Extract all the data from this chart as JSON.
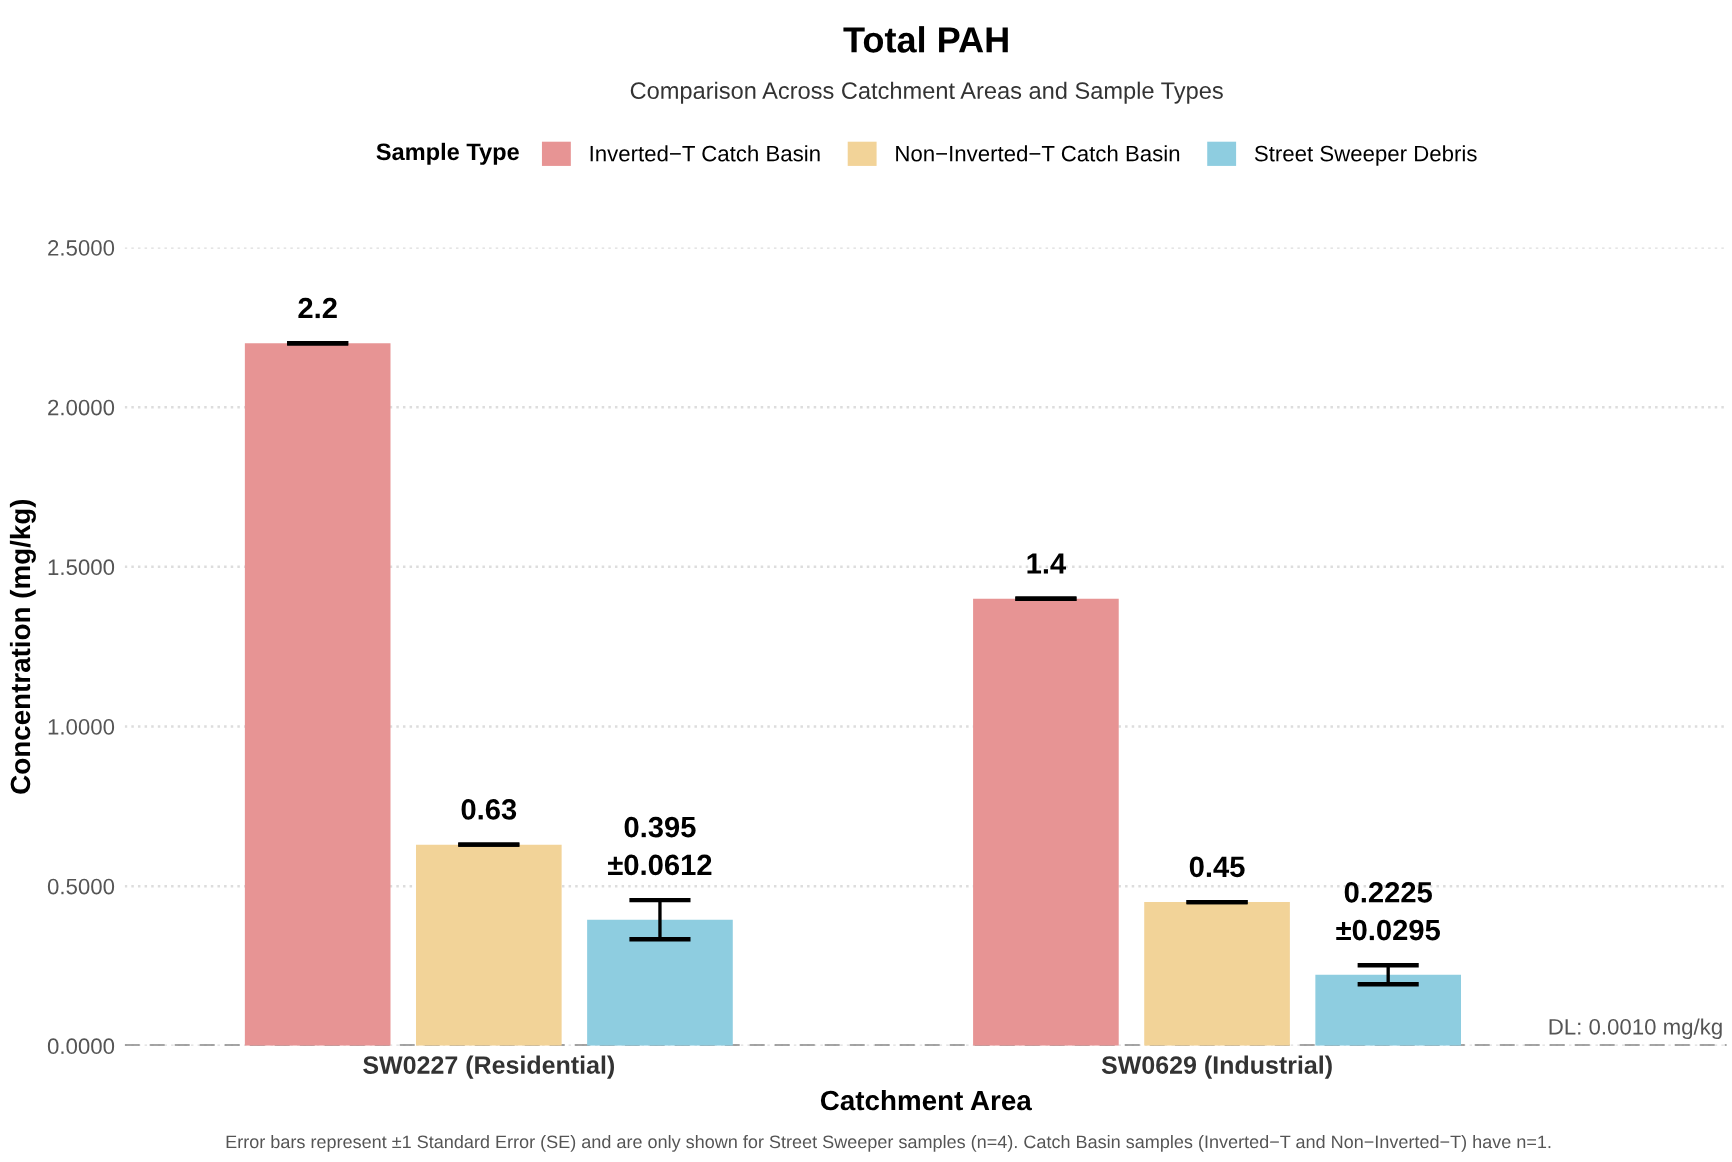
{
  "chart_data": {
    "type": "bar",
    "title": "Total PAH",
    "subtitle": "Comparison Across Catchment Areas and Sample Types",
    "xlabel": "Catchment Area",
    "ylabel": "Concentration (mg/kg)",
    "legend_title": "Sample Type",
    "categories": [
      "SW0227 (Residential)",
      "SW0629 (Industrial)"
    ],
    "series": [
      {
        "name": "Inverted−T Catch Basin",
        "color": "#e79494",
        "values": [
          2.2,
          1.4
        ],
        "errors": [
          0,
          0
        ],
        "value_labels": [
          "2.2",
          "1.4"
        ]
      },
      {
        "name": "Non−Inverted−T Catch Basin",
        "color": "#f2d398",
        "values": [
          0.63,
          0.45
        ],
        "errors": [
          0,
          0
        ],
        "value_labels": [
          "0.63",
          "0.45"
        ]
      },
      {
        "name": "Street Sweeper Debris",
        "color": "#8ecde0",
        "values": [
          0.395,
          0.2225
        ],
        "errors": [
          0.0612,
          0.0295
        ],
        "value_labels": [
          "0.395\n±0.0612",
          "0.2225\n±0.0295"
        ]
      }
    ],
    "ylim": [
      0,
      2.5
    ],
    "yticks": [
      {
        "value": 0,
        "label": "0.0000"
      },
      {
        "value": 0.5,
        "label": "0.5000"
      },
      {
        "value": 1.0,
        "label": "1.0000"
      },
      {
        "value": 1.5,
        "label": "1.5000"
      },
      {
        "value": 2.0,
        "label": "2.0000"
      },
      {
        "value": 2.5,
        "label": "2.5000"
      }
    ],
    "grid": "y",
    "legend": "top",
    "ref_lines": [
      {
        "axis": "y",
        "value": 0.001,
        "label": "DL: 0.0010 mg/kg",
        "color": "#888888",
        "line_style": "dashed"
      }
    ],
    "annotations": [
      "Error bars represent ±1 Standard Error (SE) and are only shown for Street Sweeper samples (n=4). Catch Basin samples (Inverted−T and Non−Inverted−T) have n=1."
    ]
  }
}
